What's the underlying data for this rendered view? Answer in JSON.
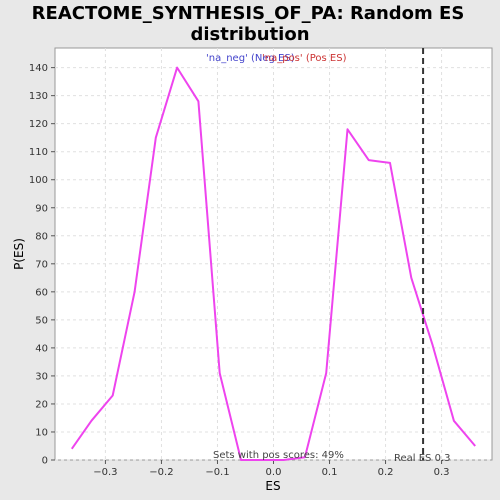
{
  "chart_data": {
    "type": "line",
    "title_line1": "REACTOME_SYNTHESIS_OF_PA: Random ES",
    "title_line2": "distribution",
    "xlabel": "ES",
    "ylabel": "P(ES)",
    "xlim": [
      -0.39,
      0.39
    ],
    "ylim": [
      0,
      147
    ],
    "x_ticks": [
      -0.3,
      -0.2,
      -0.1,
      0.0,
      0.1,
      0.2,
      0.3
    ],
    "x_tick_labels": [
      "−0.3",
      "−0.2",
      "−0.1",
      "0.0",
      "0.1",
      "0.2",
      "0.3"
    ],
    "y_ticks": [
      0,
      10,
      20,
      30,
      40,
      50,
      60,
      70,
      80,
      90,
      100,
      110,
      120,
      130,
      140
    ],
    "grid": true,
    "legend": [
      {
        "label": "'na_neg' (Neg ES)",
        "color": "#4444cc"
      },
      {
        "label": "'na_pos' (Pos ES)",
        "color": "#cc3333"
      }
    ],
    "series": [
      {
        "color": "#ee44ee",
        "x": [
          -0.36,
          -0.325,
          -0.287,
          -0.248,
          -0.21,
          -0.172,
          -0.134,
          -0.096,
          -0.058,
          -0.02,
          0.018,
          0.056,
          0.094,
          0.132,
          0.17,
          0.208,
          0.246,
          0.284,
          0.322,
          0.36
        ],
        "y": [
          4,
          14,
          23,
          60,
          115,
          140,
          128,
          31,
          0,
          0,
          0,
          1,
          31,
          118,
          107,
          106,
          65,
          41,
          14,
          5
        ]
      }
    ],
    "real_es": 0.267,
    "real_es_label": "Real ES 0.3",
    "pos_scores_label": "Sets with pos scores: 49%"
  }
}
